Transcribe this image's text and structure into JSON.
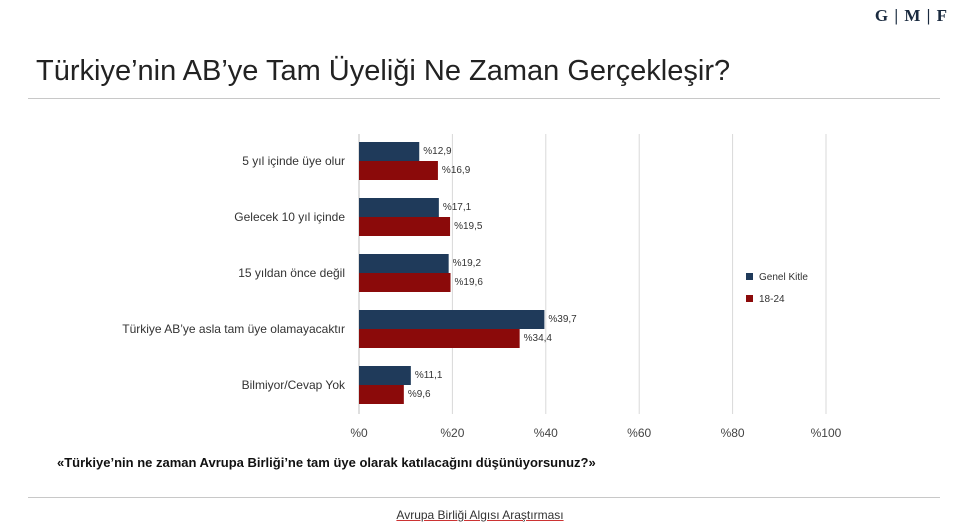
{
  "logo": "G | M | F",
  "page_title": "Türkiye’nin AB’ye Tam Üyeliği Ne Zaman Gerçekleşir?",
  "question": "«Türkiye’nin ne zaman Avrupa Birliği’ne tam üye olarak katılacağını düşünüyorsunuz?»",
  "footer": "Avrupa Birliği Algısı Araştırması",
  "colors": {
    "genel_kitle": "#1f3a5a",
    "18_24": "#8b0a0a",
    "grid": "#d9d9d9"
  },
  "chart_data": {
    "type": "bar",
    "orientation": "horizontal",
    "categories": [
      "5 yıl içinde üye olur",
      "Gelecek 10 yıl içinde",
      "15 yıldan önce değil",
      "Türkiye AB’ye asla tam üye olamayacaktır",
      "Bilmiyor/Cevap Yok"
    ],
    "series": [
      {
        "name": "Genel Kitle",
        "values": [
          12.9,
          17.1,
          19.2,
          39.7,
          11.1
        ],
        "labels": [
          "%12,9",
          "%17,1",
          "%19,2",
          "%39,7",
          "%11,1"
        ]
      },
      {
        "name": "18-24",
        "values": [
          16.9,
          19.5,
          19.6,
          34.4,
          9.6
        ],
        "labels": [
          "%16,9",
          "%19,5",
          "%19,6",
          "%34,4",
          "%9,6"
        ]
      }
    ],
    "xlim": [
      0,
      100
    ],
    "x_ticks": [
      0,
      20,
      40,
      60,
      80,
      100
    ],
    "x_tick_labels": [
      "%0",
      "%20",
      "%40",
      "%60",
      "%80",
      "%100"
    ],
    "grid": true,
    "legend": "right"
  }
}
